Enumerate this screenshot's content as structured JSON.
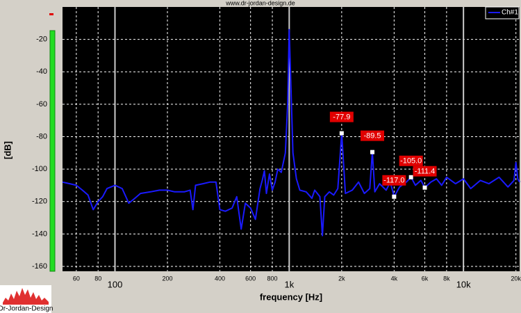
{
  "chart_data": {
    "type": "line",
    "title": "www.dr-jordan-design.de",
    "xlabel": "frequency [Hz]",
    "ylabel": "[dB]",
    "xscale": "log",
    "xlim": [
      50,
      21000
    ],
    "ylim": [
      -163,
      0
    ],
    "xticks": [
      60,
      80,
      100,
      200,
      400,
      600,
      800,
      {
        "value": 1000,
        "label": "1k"
      },
      {
        "value": 2000,
        "label": "2k"
      },
      {
        "value": 4000,
        "label": "4k"
      },
      {
        "value": 6000,
        "label": "6k"
      },
      {
        "value": 8000,
        "label": "8k"
      },
      {
        "value": 10000,
        "label": "10k"
      },
      {
        "value": 20000,
        "label": "20k"
      }
    ],
    "yticks": [
      -20,
      -40,
      -60,
      -80,
      -100,
      -120,
      -140,
      -160
    ],
    "grid": true,
    "legend": "upper right",
    "x": [
      50,
      55,
      60,
      65,
      70,
      75,
      80,
      85,
      90,
      100,
      110,
      120,
      130,
      140,
      160,
      180,
      200,
      220,
      250,
      270,
      280,
      290,
      320,
      350,
      380,
      400,
      430,
      470,
      500,
      530,
      560,
      600,
      640,
      680,
      700,
      720,
      740,
      770,
      800,
      830,
      860,
      900,
      950,
      980,
      1000,
      1020,
      1050,
      1100,
      1150,
      1250,
      1350,
      1400,
      1500,
      1550,
      1600,
      1700,
      1800,
      1900,
      2000,
      2100,
      2300,
      2500,
      2700,
      2900,
      3000,
      3100,
      3300,
      3600,
      3800,
      4000,
      4300,
      4700,
      5000,
      5300,
      5700,
      6000,
      6500,
      7000,
      7500,
      8000,
      9000,
      10000,
      11000,
      12500,
      14000,
      16000,
      18000,
      19500,
      20000,
      20500,
      21000
    ],
    "series": [
      {
        "name": "Ch#1",
        "color": "#1a1aff",
        "values": [
          -108,
          -109,
          -110,
          -113,
          -116,
          -125,
          -120,
          -117,
          -112,
          -110,
          -112,
          -121,
          -118,
          -115,
          -114,
          -113,
          -113,
          -114,
          -114,
          -113,
          -125,
          -110,
          -109,
          -108,
          -108,
          -125,
          -126,
          -124,
          -117,
          -137,
          -121,
          -124,
          -131,
          -112,
          -107,
          -101,
          -115,
          -103,
          -113,
          -108,
          -100,
          -102,
          -90,
          -60,
          -14,
          -45,
          -90,
          -106,
          -113,
          -114,
          -118,
          -113,
          -117,
          -141,
          -117,
          -114,
          -116,
          -112,
          -77.9,
          -115,
          -113,
          -108,
          -115,
          -112,
          -89.5,
          -114,
          -109,
          -113,
          -108,
          -117,
          -111,
          -108,
          -105,
          -110,
          -107,
          -111.4,
          -108,
          -106,
          -110,
          -105,
          -109,
          -106,
          -112,
          -107,
          -109,
          -105,
          -111,
          -107,
          -96,
          -106,
          -108
        ]
      }
    ],
    "annotations": [
      {
        "x": 2000,
        "value": -77.9,
        "label": "-77.9"
      },
      {
        "x": 3000,
        "value": -89.5,
        "label": "-89.5"
      },
      {
        "x": 4000,
        "value": -117,
        "label": "-117.0"
      },
      {
        "x": 5000,
        "value": -105,
        "label": "-105.0"
      },
      {
        "x": 6000,
        "value": -111.4,
        "label": "-111.4"
      }
    ]
  },
  "logo_text": "Dr-Jordan-Design"
}
